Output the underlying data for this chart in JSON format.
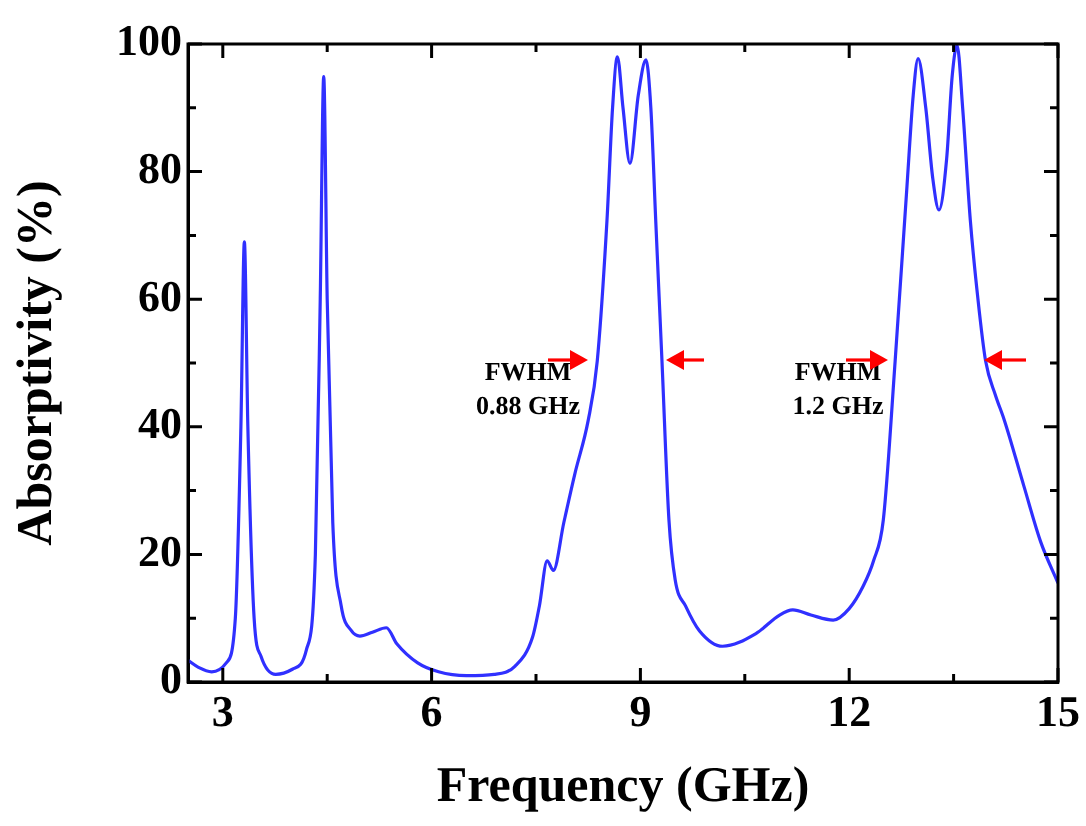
{
  "chart_data": {
    "type": "line",
    "xlabel": "Frequency (GHz)",
    "ylabel": "Absorptivity (%)",
    "xlim": [
      2.5,
      15
    ],
    "xticks": [
      3,
      {
        "value": 4.5,
        "label": null
      },
      6,
      {
        "value": 7.5,
        "label": null
      },
      9,
      {
        "value": 10.5,
        "label": null
      },
      12,
      {
        "value": 13.5,
        "label": null
      },
      15
    ],
    "ylim": [
      0,
      100
    ],
    "yticks": [
      0,
      {
        "value": 10,
        "label": null
      },
      20,
      {
        "value": 30,
        "label": null
      },
      40,
      {
        "value": 50,
        "label": null
      },
      60,
      {
        "value": 70,
        "label": null
      },
      80,
      {
        "value": 90,
        "label": null
      },
      100
    ],
    "grid": false,
    "legend": false,
    "marker": "none",
    "line_style": "solid",
    "annotations": [
      "FWHM\n0.88 GHz",
      "FWHM\n1.2 GHz"
    ],
    "series": [
      {
        "color": "#3030ff",
        "x": [
          2.5,
          2.65,
          2.84,
          3.05,
          3.18,
          3.26,
          3.31,
          3.36,
          3.45,
          3.55,
          3.76,
          4.0,
          4.2,
          4.33,
          4.4,
          4.45,
          4.5,
          4.58,
          4.7,
          4.85,
          4.97,
          5.15,
          5.35,
          5.5,
          5.8,
          6.1,
          6.5,
          6.9,
          7.2,
          7.45,
          7.55,
          7.66,
          7.75,
          7.9,
          8.06,
          8.25,
          8.38,
          8.52,
          8.6,
          8.67,
          8.75,
          8.85,
          8.97,
          9.08,
          9.15,
          9.22,
          9.31,
          9.41,
          9.5,
          9.65,
          9.85,
          10.18,
          10.66,
          11.0,
          11.19,
          11.45,
          11.77,
          12.0,
          12.2,
          12.35,
          12.49,
          12.66,
          12.83,
          12.92,
          12.99,
          13.1,
          13.2,
          13.29,
          13.4,
          13.48,
          13.55,
          13.63,
          13.74,
          13.85,
          13.96,
          14.1,
          14.23,
          14.51,
          14.75,
          15
        ],
        "values": [
          3.4,
          2.3,
          1.6,
          3,
          10,
          40,
          69,
          40,
          10,
          4,
          1.2,
          2,
          5,
          20,
          60,
          94.9,
          60,
          25,
          12,
          8,
          7.2,
          7.8,
          8.5,
          6,
          3,
          1.6,
          1,
          1.2,
          2.5,
          7,
          12,
          19,
          17.5,
          25,
          32.7,
          41,
          50.3,
          72.4,
          90,
          98,
          90,
          81.3,
          92,
          97.5,
          90,
          72.4,
          50.3,
          25.4,
          16,
          11.9,
          8,
          5.6,
          7.6,
          10.5,
          11.3,
          10.5,
          9.7,
          11.5,
          15,
          19,
          25.4,
          50.3,
          77.7,
          92,
          97.7,
          90,
          79,
          74,
          82,
          95,
          99.8,
          90,
          72.4,
          60,
          50.3,
          45,
          41,
          30.7,
          22,
          15.5
        ]
      }
    ]
  }
}
